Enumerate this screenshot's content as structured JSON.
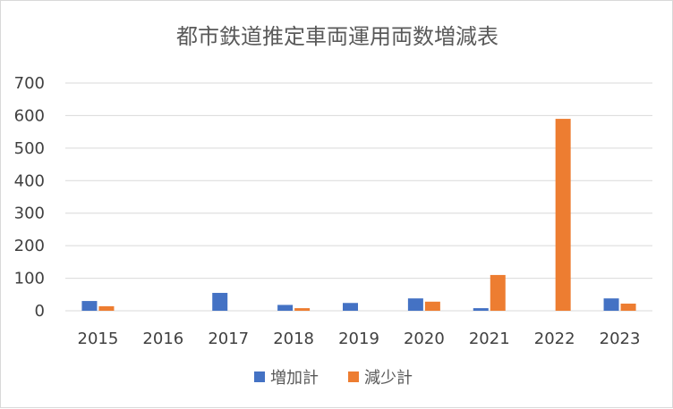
{
  "chart_data": {
    "type": "bar",
    "title": "都市鉄道推定車両運用両数増減表",
    "xlabel": "",
    "ylabel": "",
    "categories": [
      "2015",
      "2016",
      "2017",
      "2018",
      "2019",
      "2020",
      "2021",
      "2022",
      "2023"
    ],
    "series": [
      {
        "name": "増加計",
        "color": "#4472C4",
        "values": [
          30,
          0,
          55,
          18,
          24,
          38,
          8,
          0,
          38
        ]
      },
      {
        "name": "減少計",
        "color": "#ED7D31",
        "values": [
          14,
          0,
          0,
          8,
          0,
          28,
          110,
          590,
          22
        ]
      }
    ],
    "ylim": [
      0,
      700
    ],
    "yticks": [
      0,
      100,
      200,
      300,
      400,
      500,
      600,
      700
    ],
    "grid": true,
    "legend": "bottom"
  }
}
